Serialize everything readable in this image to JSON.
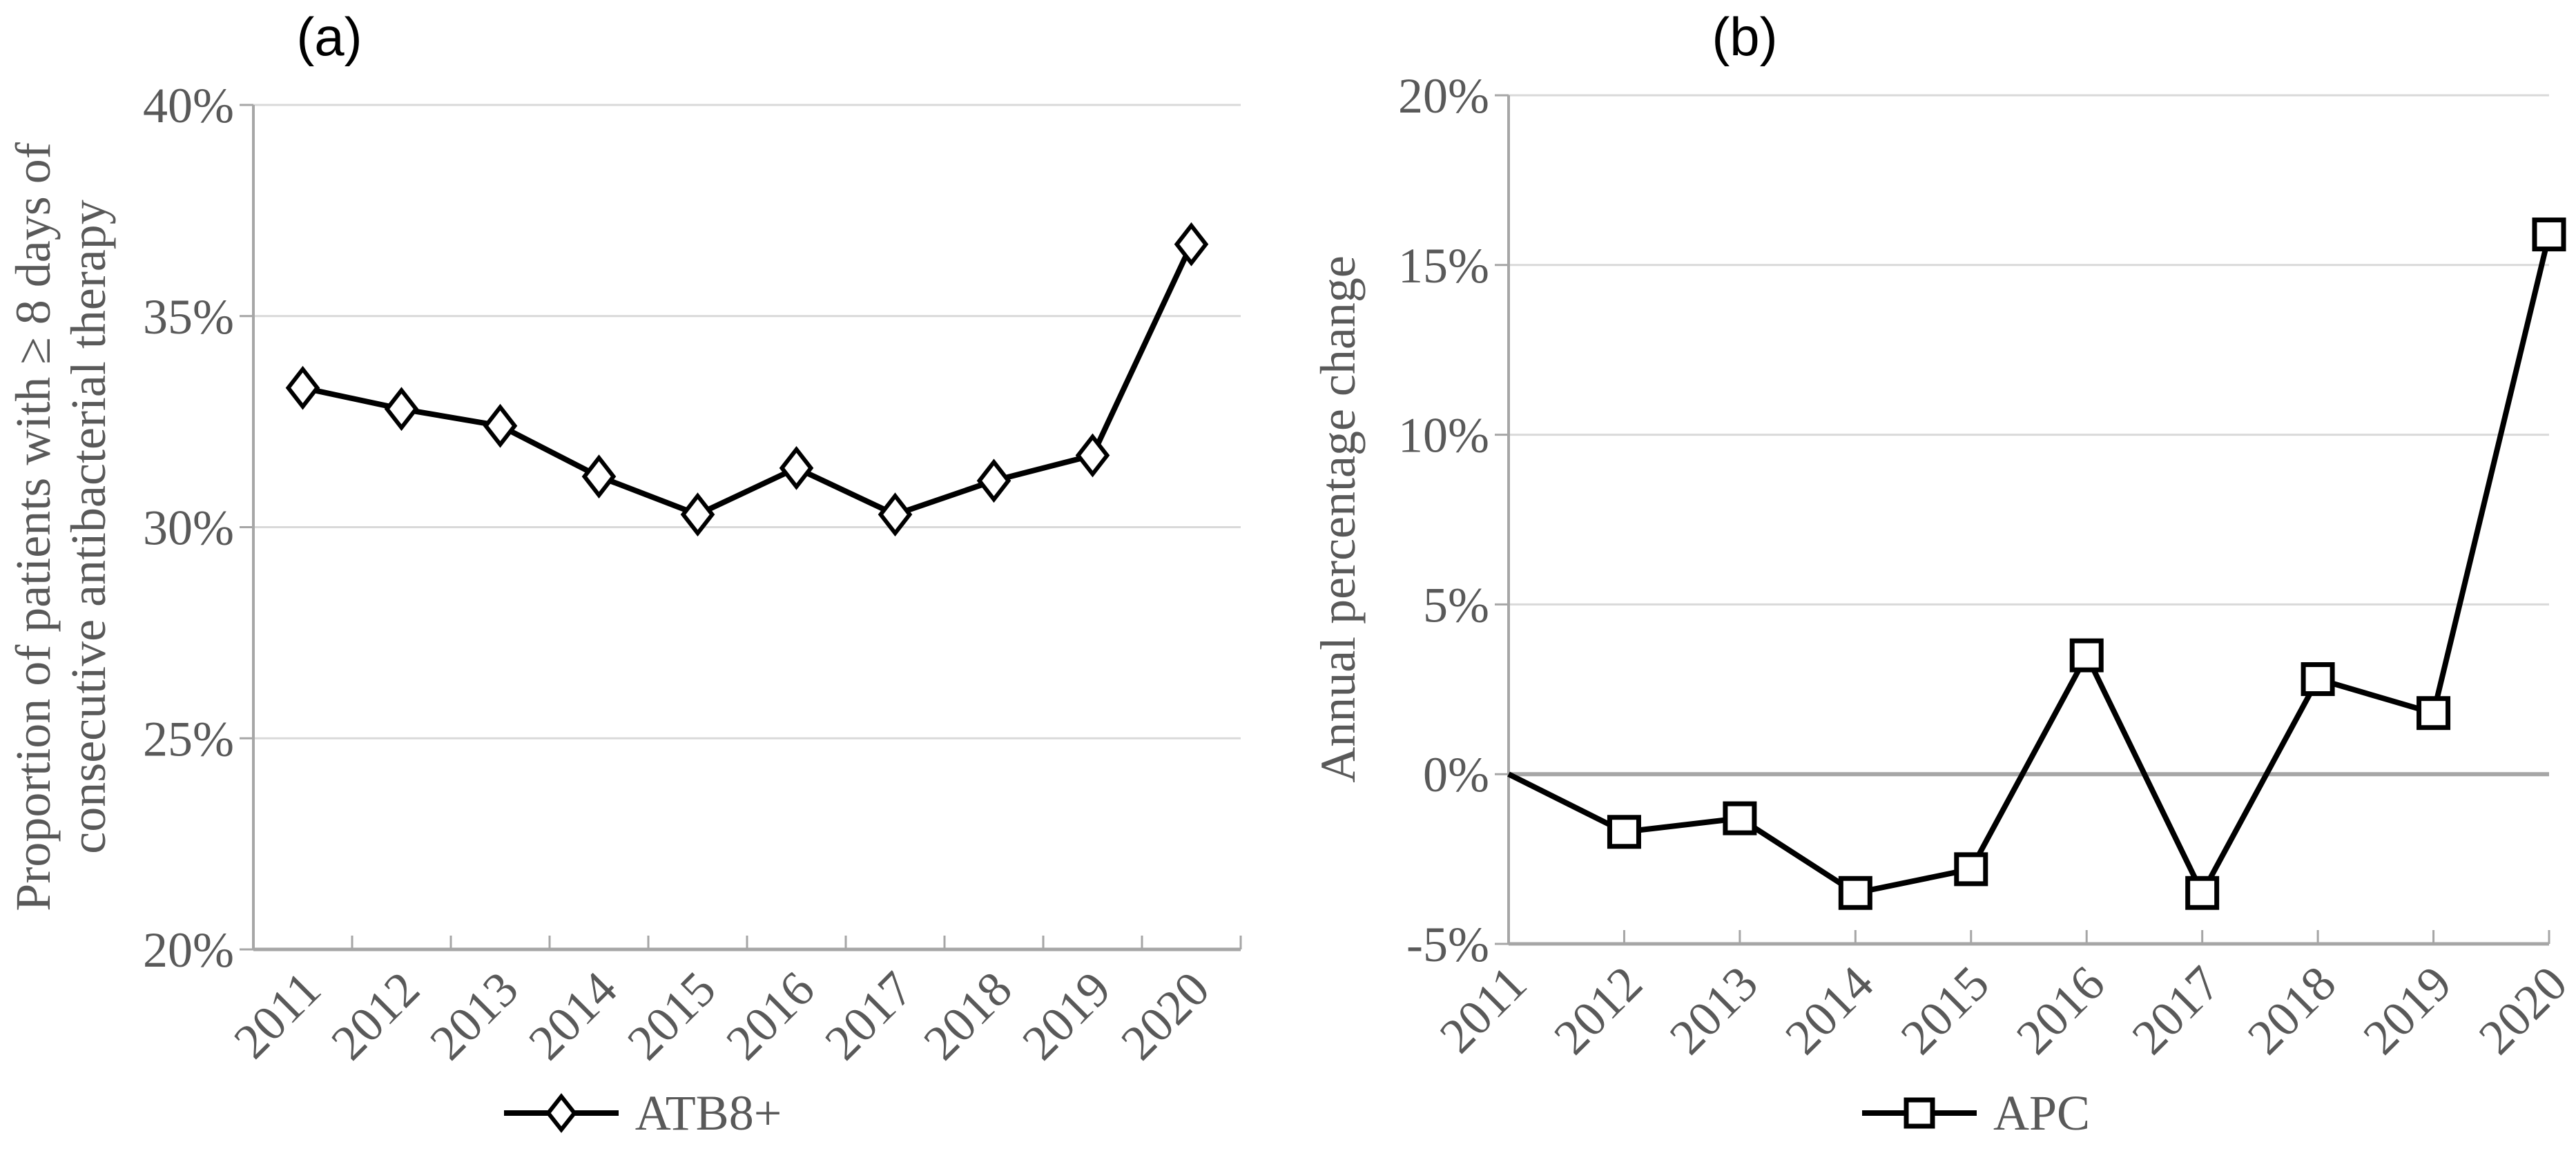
{
  "colors": {
    "series_line": "#000000",
    "marker_fill": "#ffffff",
    "gridline": "#d9d9d9",
    "axis_line": "#a6a6a6",
    "zero_line": "#a6a6a6",
    "label_text": "#595959",
    "title_text": "#000000"
  },
  "chart_data": [
    {
      "type": "line",
      "title": "(a)",
      "ylabel": "Proportion of patients with ≥ 8 days of consecutive antibacterial therapy",
      "ylabel_lines": [
        "Proportion of patients with ≥ 8 days of",
        "consecutive antibacterial therapy"
      ],
      "x": [
        "2011",
        "2012",
        "2013",
        "2014",
        "2015",
        "2016",
        "2017",
        "2018",
        "2019",
        "2020"
      ],
      "series": [
        {
          "name": "ATB8+",
          "marker": "diamond",
          "marker_first_point": true,
          "values": [
            33.3,
            32.8,
            32.4,
            31.2,
            30.3,
            31.4,
            30.3,
            31.1,
            31.7,
            36.7
          ]
        }
      ],
      "ylim": [
        20,
        40
      ],
      "ytick_step": 5,
      "ytick_format": "percent",
      "grid": true,
      "legend_position": "bottom",
      "x_style": "between-ticks"
    },
    {
      "type": "line",
      "title": "(b)",
      "ylabel": "Annual percentage change",
      "ylabel_lines": [
        "Annual percentage change"
      ],
      "x": [
        "2011",
        "2012",
        "2013",
        "2014",
        "2015",
        "2016",
        "2017",
        "2018",
        "2019",
        "2020"
      ],
      "series": [
        {
          "name": "APC",
          "marker": "square",
          "marker_first_point": false,
          "values": [
            0.0,
            -1.7,
            -1.3,
            -3.5,
            -2.8,
            3.5,
            -3.5,
            2.8,
            1.8,
            15.9
          ]
        }
      ],
      "ylim": [
        -5,
        20
      ],
      "ytick_step": 5,
      "ytick_format": "percent",
      "grid": true,
      "zero_line": true,
      "legend_position": "bottom",
      "x_style": "on-ticks"
    }
  ]
}
